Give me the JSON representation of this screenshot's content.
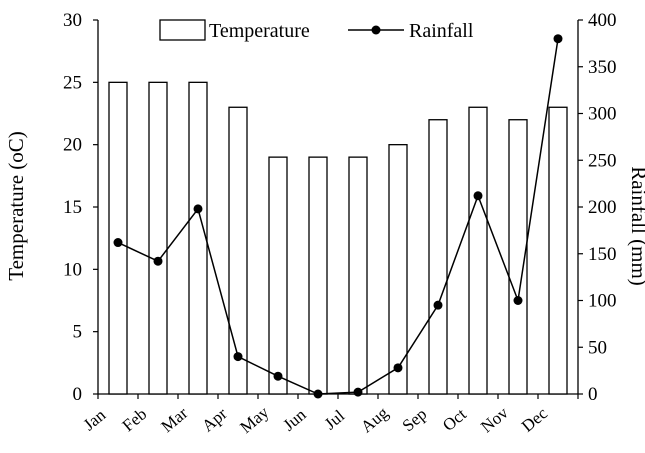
{
  "chart_data": {
    "type": "bar",
    "categories": [
      "Jan",
      "Feb",
      "Mar",
      "Apr",
      "May",
      "Jun",
      "Jul",
      "Aug",
      "Sep",
      "Oct",
      "Nov",
      "Dec"
    ],
    "series": [
      {
        "name": "Temperature",
        "type": "bar",
        "axis": "left",
        "values": [
          25,
          25,
          25,
          23,
          19,
          19,
          19,
          20,
          22,
          23,
          22,
          23
        ],
        "color": "#ffffff",
        "stroke": "#000000"
      },
      {
        "name": "Rainfall",
        "type": "line",
        "axis": "right",
        "values": [
          162,
          142,
          198,
          40,
          19,
          0,
          2,
          28,
          95,
          212,
          100,
          380
        ],
        "color": "#000000"
      }
    ],
    "ylabel": "Temperature (oC)",
    "y2label": "Rainfall (mm)",
    "ylim": [
      0,
      30
    ],
    "y2lim": [
      0,
      400
    ],
    "yticks": [
      0,
      5,
      10,
      15,
      20,
      25,
      30
    ],
    "y2ticks": [
      0,
      50,
      100,
      150,
      200,
      250,
      300,
      350,
      400
    ],
    "legend": "top-center",
    "grid": false
  }
}
